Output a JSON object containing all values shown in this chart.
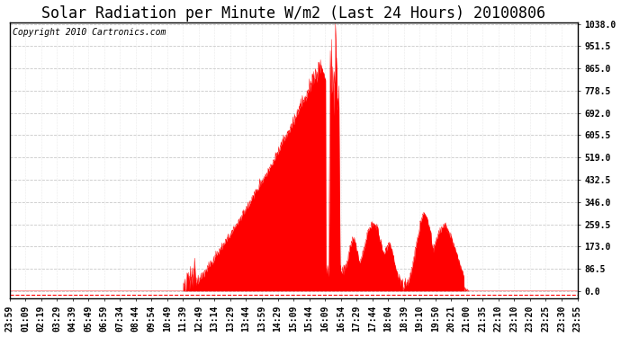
{
  "title": "Solar Radiation per Minute W/m2 (Last 24 Hours) 20100806",
  "copyright": "Copyright 2010 Cartronics.com",
  "y_max": 1038.0,
  "y_min": 0.0,
  "y_ticks": [
    0.0,
    86.5,
    173.0,
    259.5,
    346.0,
    432.5,
    519.0,
    605.5,
    692.0,
    778.5,
    865.0,
    951.5,
    1038.0
  ],
  "fill_color": "#FF0000",
  "line_color": "#FF0000",
  "bg_color": "#FFFFFF",
  "grid_color": "#BBBBBB",
  "x_labels": [
    "23:59",
    "01:09",
    "02:19",
    "03:29",
    "04:39",
    "05:49",
    "06:59",
    "07:34",
    "08:44",
    "09:54",
    "10:49",
    "11:39",
    "12:49",
    "13:14",
    "13:29",
    "13:44",
    "13:59",
    "14:29",
    "15:09",
    "15:44",
    "16:09",
    "16:54",
    "17:29",
    "17:44",
    "18:04",
    "18:39",
    "19:10",
    "19:50",
    "20:21",
    "21:00",
    "21:35",
    "22:10",
    "23:10",
    "23:20",
    "23:25",
    "23:30",
    "23:55"
  ],
  "title_fontsize": 12,
  "axis_fontsize": 7,
  "copyright_fontsize": 7
}
